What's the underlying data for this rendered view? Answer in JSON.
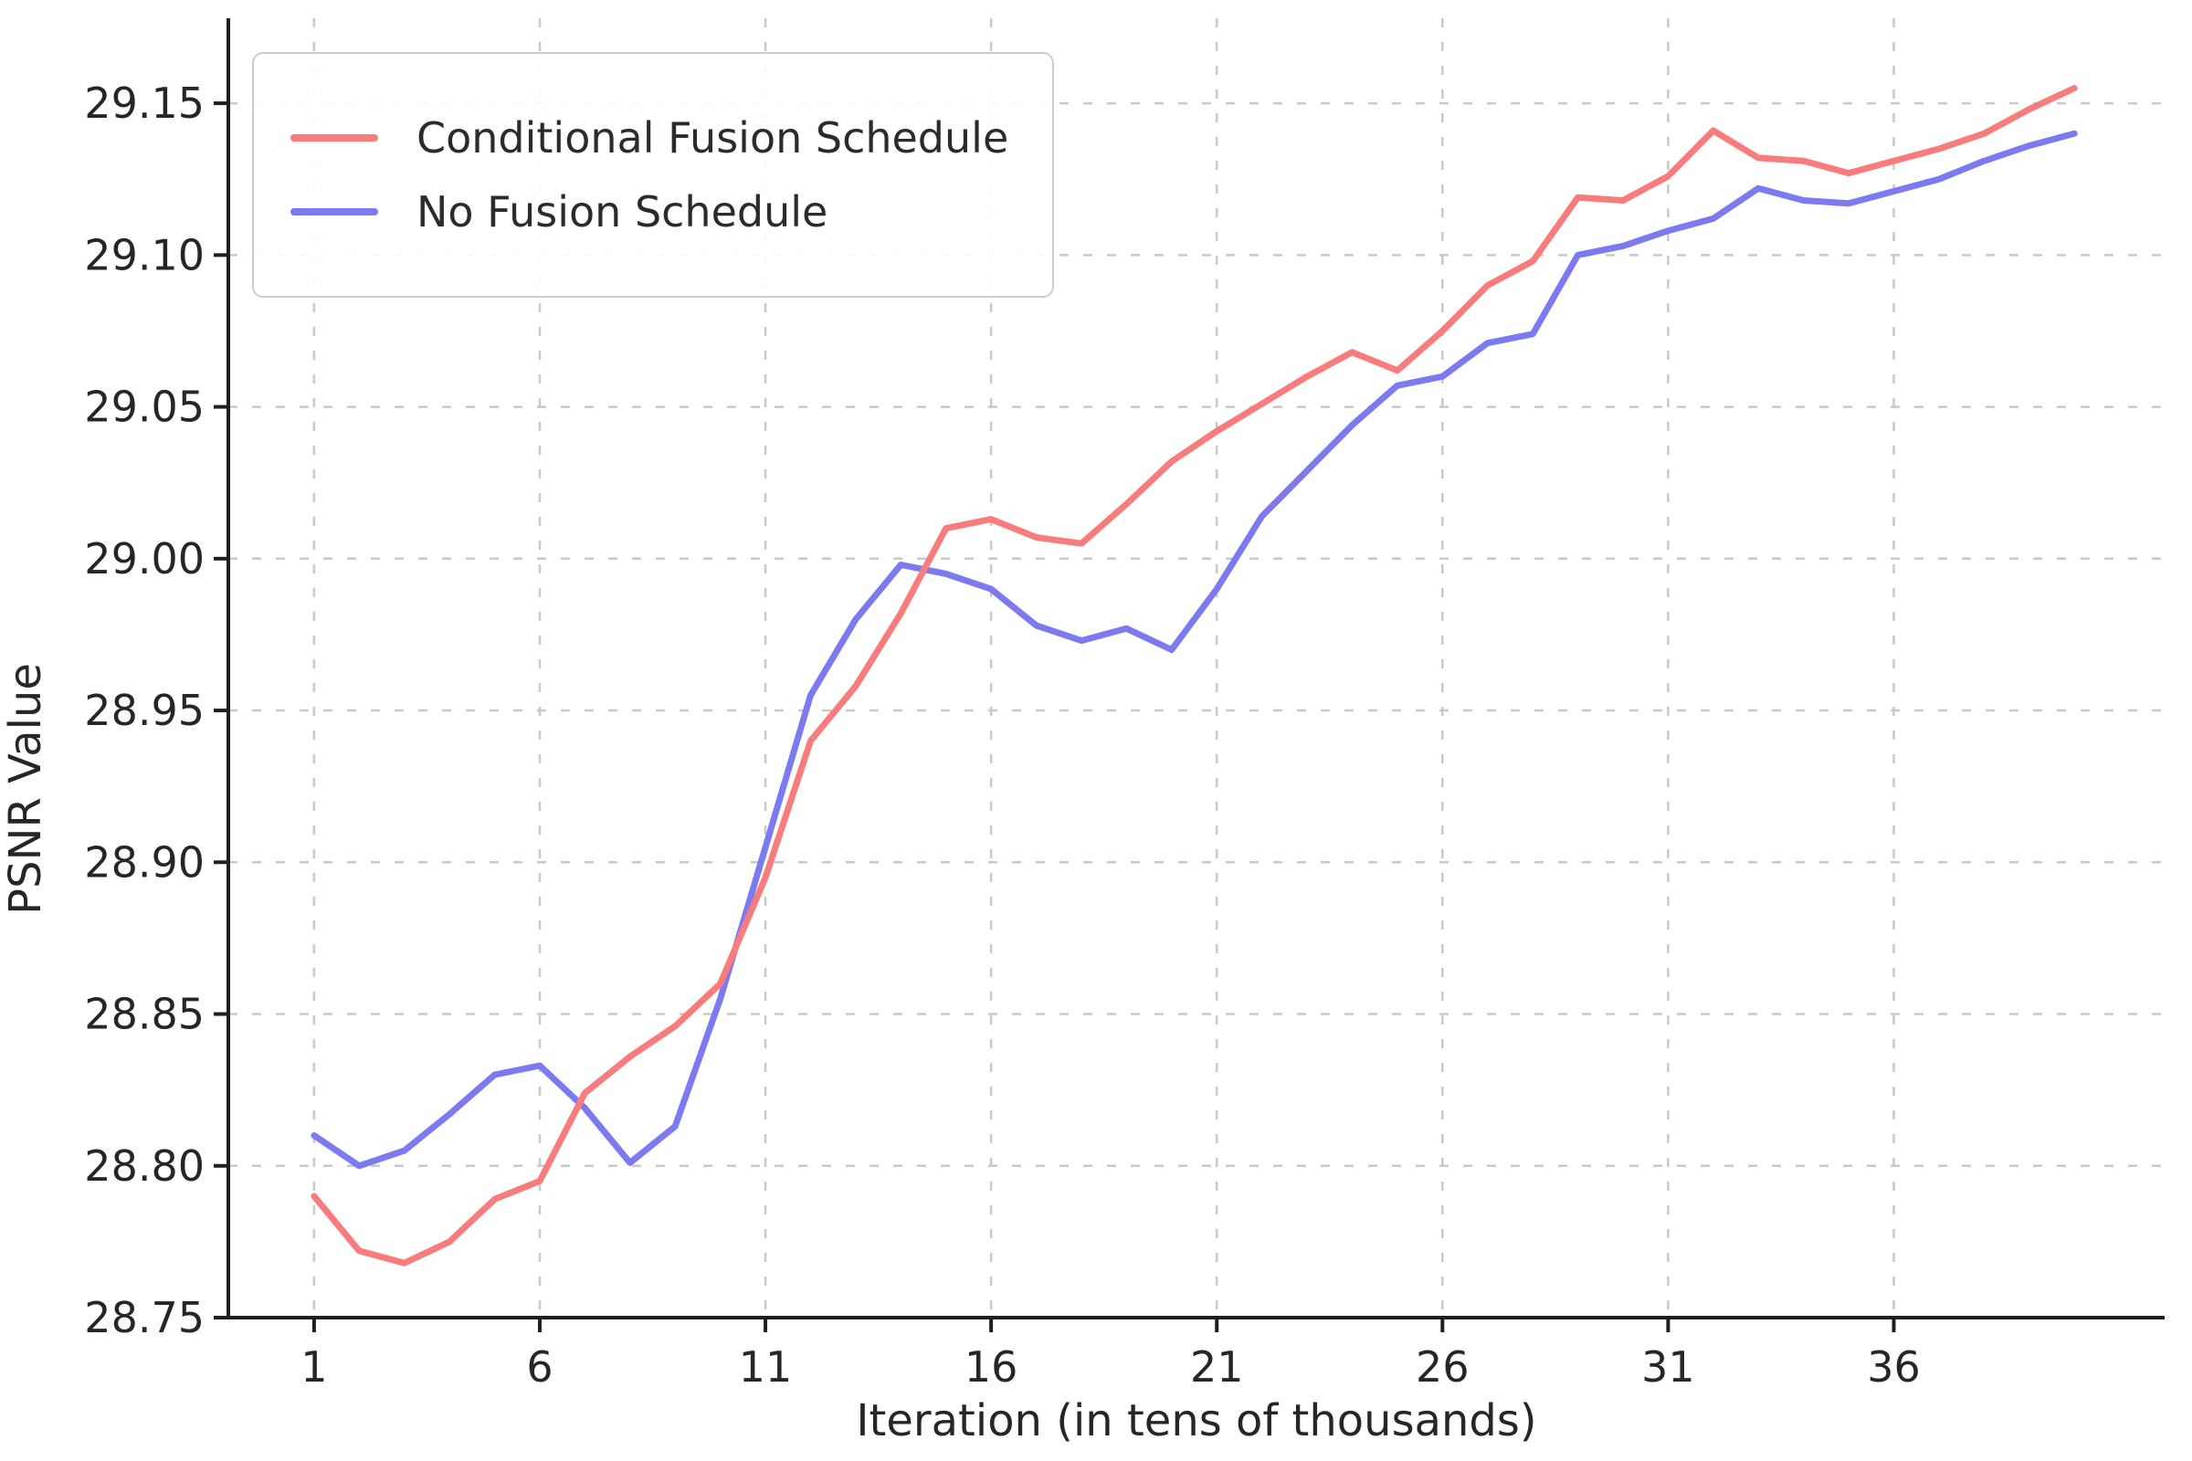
{
  "chart_data": {
    "type": "line",
    "title": "",
    "xlabel": "Iteration (in tens of thousands)",
    "ylabel": "PSNR Value",
    "x": [
      1,
      2,
      3,
      4,
      5,
      6,
      7,
      8,
      9,
      10,
      11,
      12,
      13,
      14,
      15,
      16,
      17,
      18,
      19,
      20,
      21,
      22,
      23,
      24,
      25,
      26,
      27,
      28,
      29,
      30,
      31,
      32,
      33,
      34,
      35,
      36,
      37,
      38,
      39,
      40
    ],
    "series": [
      {
        "name": "Conditional Fusion Schedule",
        "color": "#F87C7C",
        "values": [
          28.79,
          28.772,
          28.768,
          28.775,
          28.789,
          28.795,
          28.824,
          28.836,
          28.846,
          28.86,
          28.895,
          28.94,
          28.958,
          28.982,
          29.01,
          29.013,
          29.007,
          29.005,
          29.018,
          29.032,
          29.042,
          29.051,
          29.06,
          29.068,
          29.062,
          29.075,
          29.09,
          29.098,
          29.119,
          29.118,
          29.126,
          29.141,
          29.132,
          29.131,
          29.127,
          29.131,
          29.135,
          29.14,
          29.148,
          29.155
        ]
      },
      {
        "name": "No Fusion Schedule",
        "color": "#7B7AF0",
        "values": [
          28.81,
          28.8,
          28.805,
          28.817,
          28.83,
          28.833,
          28.819,
          28.801,
          28.813,
          28.855,
          28.905,
          28.955,
          28.98,
          28.998,
          28.995,
          28.99,
          28.978,
          28.973,
          28.977,
          28.97,
          28.99,
          29.014,
          29.029,
          29.044,
          29.057,
          29.06,
          29.071,
          29.074,
          29.1,
          29.103,
          29.108,
          29.112,
          29.122,
          29.118,
          29.117,
          29.121,
          29.125,
          29.131,
          29.136,
          29.14
        ]
      }
    ],
    "xticks": [
      1,
      6,
      11,
      16,
      21,
      26,
      31,
      36
    ],
    "xtick_labels": [
      "1",
      "6",
      "11",
      "16",
      "21",
      "26",
      "31",
      "36"
    ],
    "yticks": [
      28.75,
      28.8,
      28.85,
      28.9,
      28.95,
      29.0,
      29.05,
      29.1,
      29.15
    ],
    "ytick_labels": [
      "28.75",
      "28.80",
      "28.85",
      "28.90",
      "28.95",
      "29.00",
      "29.05",
      "29.10",
      "29.15"
    ],
    "xlim": [
      -0.9,
      42.0
    ],
    "ylim": [
      28.75,
      29.178
    ],
    "grid": true,
    "grid_style": "dashed",
    "legend_position": "upper left"
  },
  "style": {
    "grid_color": "#C9C9C9",
    "spine_color": "#1f1f1f",
    "tick_label_color": "#262626",
    "line_width": 7
  }
}
